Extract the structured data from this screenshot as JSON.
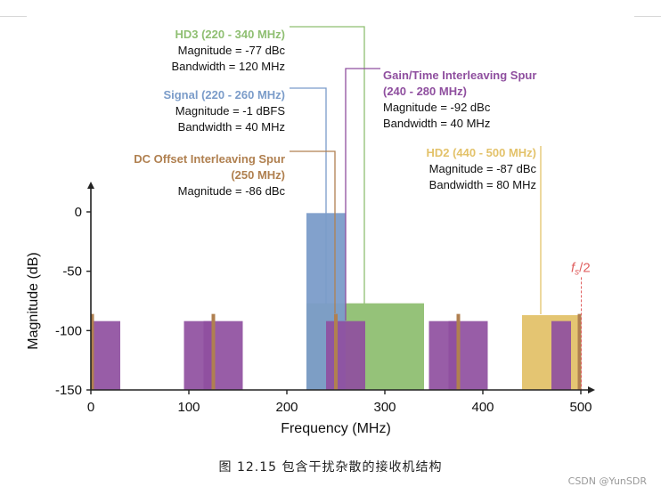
{
  "chart_data": {
    "type": "bar",
    "xlabel": "Frequency (MHz)",
    "ylabel": "Magnitude (dB)",
    "xlim": [
      0,
      500
    ],
    "ylim": [
      -150,
      0
    ],
    "xticks": [
      "0",
      "100",
      "200",
      "300",
      "400",
      "500"
    ],
    "yticks": [
      "0",
      "-50",
      "-100",
      "-150"
    ],
    "colors": {
      "signal": "#7b9cc9",
      "hd3": "#8fbf72",
      "hd2": "#e3c26a",
      "spur": "#8f4f9f",
      "dc": "#b08050",
      "nyquist": "#e06060",
      "axis": "#222222"
    },
    "series": [
      {
        "name": "Signal",
        "color_key": "signal",
        "bars": [
          {
            "x0": 220,
            "x1": 260,
            "y": -1
          }
        ]
      },
      {
        "name": "HD3",
        "color_key": "hd3",
        "bars": [
          {
            "x0": 220,
            "x1": 340,
            "y": -77
          }
        ]
      },
      {
        "name": "HD2",
        "color_key": "hd2",
        "bars": [
          {
            "x0": 440,
            "x1": 500,
            "y": -87
          }
        ]
      },
      {
        "name": "Gain/Time Interleaving Spur",
        "color_key": "spur",
        "bars": [
          {
            "x0": 0,
            "x1": 30,
            "y": -92
          },
          {
            "x0": 95,
            "x1": 155,
            "y": -92
          },
          {
            "x0": 115,
            "x1": 125,
            "y": -92
          },
          {
            "x0": 240,
            "x1": 280,
            "y": -92
          },
          {
            "x0": 345,
            "x1": 405,
            "y": -92
          },
          {
            "x0": 365,
            "x1": 375,
            "y": -92
          },
          {
            "x0": 470,
            "x1": 490,
            "y": -92
          }
        ]
      },
      {
        "name": "DC Offset Interleaving Spur",
        "color_key": "dc",
        "lines": [
          {
            "x": 0,
            "y": -86
          },
          {
            "x": 125,
            "y": -86
          },
          {
            "x": 250,
            "y": -86
          },
          {
            "x": 375,
            "y": -86
          },
          {
            "x": 500,
            "y": -86
          }
        ]
      }
    ],
    "nyquist": {
      "label_main": "f",
      "label_sub": "s",
      "label_tail": "/2",
      "x": 500,
      "y_top": -55
    },
    "annotations": [
      {
        "id": "hd3",
        "title": "HD3 (220 - 340 MHz)",
        "lines": [
          "Magnitude = -77 dBc",
          "Bandwidth = 120 MHz"
        ],
        "color_key": "hd3"
      },
      {
        "id": "signal",
        "title": "Signal (220 - 260 MHz)",
        "lines": [
          "Magnitude = -1 dBFS",
          "Bandwidth = 40 MHz"
        ],
        "color_key": "signal"
      },
      {
        "id": "dc",
        "title": "DC Offset Interleaving Spur",
        "title2": "(250 MHz)",
        "lines": [
          "Magnitude = -86 dBc"
        ],
        "color_key": "dc"
      },
      {
        "id": "spur",
        "title": "Gain/Time Interleaving Spur",
        "title2": "(240 - 280 MHz)",
        "lines": [
          "Magnitude = -92 dBc",
          "Bandwidth = 40 MHz"
        ],
        "color_key": "spur"
      },
      {
        "id": "hd2",
        "title": "HD2 (440 - 500 MHz)",
        "lines": [
          "Magnitude = -87 dBc",
          "Bandwidth = 80 MHz"
        ],
        "color_key": "hd2"
      }
    ]
  },
  "caption": "图 12.15 包含干扰杂散的接收机结构",
  "watermark": "CSDN @YunSDR"
}
